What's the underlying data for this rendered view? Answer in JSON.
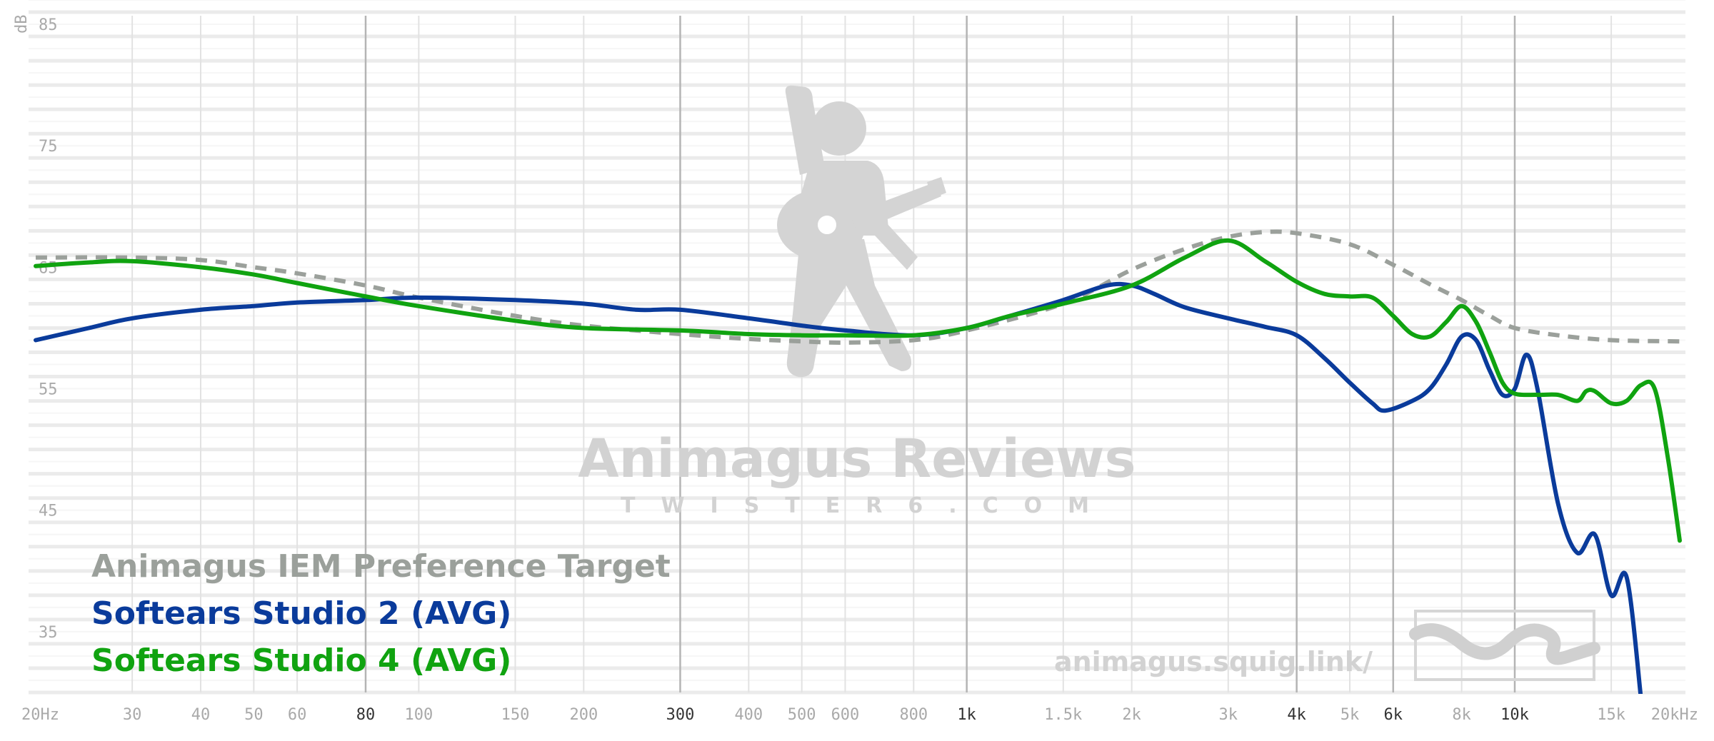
{
  "chart_data": {
    "type": "line",
    "xscale": "log",
    "xlim": [
      20,
      20000
    ],
    "ylim": [
      30,
      87
    ],
    "ylabel": "dB",
    "grid": true,
    "y_ticks": [
      {
        "label": "85",
        "value": 85
      },
      {
        "label": "75",
        "value": 75
      },
      {
        "label": "65",
        "value": 65
      },
      {
        "label": "55",
        "value": 55
      },
      {
        "label": "45",
        "value": 45
      },
      {
        "label": "35",
        "value": 35
      }
    ],
    "x_ticks": [
      {
        "label": "20Hz",
        "value": 20,
        "major": false
      },
      {
        "label": "30",
        "value": 30,
        "major": false
      },
      {
        "label": "40",
        "value": 40,
        "major": false
      },
      {
        "label": "50",
        "value": 50,
        "major": false
      },
      {
        "label": "60",
        "value": 60,
        "major": false
      },
      {
        "label": "80",
        "value": 80,
        "major": true
      },
      {
        "label": "100",
        "value": 100,
        "major": false
      },
      {
        "label": "150",
        "value": 150,
        "major": false
      },
      {
        "label": "200",
        "value": 200,
        "major": false
      },
      {
        "label": "300",
        "value": 300,
        "major": true
      },
      {
        "label": "400",
        "value": 400,
        "major": false
      },
      {
        "label": "500",
        "value": 500,
        "major": false
      },
      {
        "label": "600",
        "value": 600,
        "major": false
      },
      {
        "label": "800",
        "value": 800,
        "major": false
      },
      {
        "label": "1k",
        "value": 1000,
        "major": true
      },
      {
        "label": "1.5k",
        "value": 1500,
        "major": false
      },
      {
        "label": "2k",
        "value": 2000,
        "major": false
      },
      {
        "label": "3k",
        "value": 3000,
        "major": false
      },
      {
        "label": "4k",
        "value": 4000,
        "major": true
      },
      {
        "label": "5k",
        "value": 5000,
        "major": false
      },
      {
        "label": "6k",
        "value": 6000,
        "major": true
      },
      {
        "label": "8k",
        "value": 8000,
        "major": false
      },
      {
        "label": "10k",
        "value": 10000,
        "major": true
      },
      {
        "label": "15k",
        "value": 15000,
        "major": false
      },
      {
        "label": "20kHz",
        "value": 20000,
        "major": false
      }
    ],
    "series": [
      {
        "name": "Animagus IEM Preference Target",
        "color": "#9ba09b",
        "dashed": true,
        "points": [
          [
            20,
            65.8
          ],
          [
            30,
            65.8
          ],
          [
            40,
            65.6
          ],
          [
            50,
            65.0
          ],
          [
            60,
            64.5
          ],
          [
            80,
            63.5
          ],
          [
            100,
            62.5
          ],
          [
            150,
            61.0
          ],
          [
            200,
            60.2
          ],
          [
            300,
            59.5
          ],
          [
            400,
            59.1
          ],
          [
            500,
            58.9
          ],
          [
            600,
            58.8
          ],
          [
            800,
            59.0
          ],
          [
            1000,
            59.8
          ],
          [
            1500,
            62.0
          ],
          [
            2000,
            64.8
          ],
          [
            2500,
            66.5
          ],
          [
            3000,
            67.5
          ],
          [
            3500,
            67.9
          ],
          [
            4000,
            67.8
          ],
          [
            5000,
            66.9
          ],
          [
            6000,
            65.2
          ],
          [
            7000,
            63.6
          ],
          [
            8000,
            62.3
          ],
          [
            9000,
            61.0
          ],
          [
            10000,
            60.0
          ],
          [
            12000,
            59.4
          ],
          [
            15000,
            59.0
          ],
          [
            20000,
            58.9
          ]
        ]
      },
      {
        "name": "Softears Studio 2 (AVG)",
        "color": "#0a3b9b",
        "dashed": false,
        "points": [
          [
            20,
            59.0
          ],
          [
            25,
            60.0
          ],
          [
            30,
            60.8
          ],
          [
            40,
            61.5
          ],
          [
            50,
            61.8
          ],
          [
            60,
            62.1
          ],
          [
            80,
            62.3
          ],
          [
            100,
            62.5
          ],
          [
            150,
            62.3
          ],
          [
            200,
            62.0
          ],
          [
            250,
            61.5
          ],
          [
            300,
            61.5
          ],
          [
            400,
            60.8
          ],
          [
            500,
            60.2
          ],
          [
            600,
            59.8
          ],
          [
            800,
            59.4
          ],
          [
            1000,
            60.0
          ],
          [
            1200,
            61.0
          ],
          [
            1500,
            62.3
          ],
          [
            1800,
            63.5
          ],
          [
            2000,
            63.5
          ],
          [
            2200,
            62.8
          ],
          [
            2500,
            61.7
          ],
          [
            3000,
            60.8
          ],
          [
            3500,
            60.1
          ],
          [
            4000,
            59.4
          ],
          [
            4500,
            57.5
          ],
          [
            5000,
            55.5
          ],
          [
            5500,
            53.8
          ],
          [
            5800,
            53.2
          ],
          [
            6500,
            54.0
          ],
          [
            7000,
            55.0
          ],
          [
            7500,
            57.0
          ],
          [
            8000,
            59.3
          ],
          [
            8500,
            59.0
          ],
          [
            9000,
            56.5
          ],
          [
            9500,
            54.5
          ],
          [
            10000,
            55.0
          ],
          [
            10500,
            57.8
          ],
          [
            11000,
            55.0
          ],
          [
            12000,
            45.5
          ],
          [
            13000,
            41.5
          ],
          [
            14000,
            43.0
          ],
          [
            15000,
            38.0
          ],
          [
            16000,
            39.5
          ],
          [
            17000,
            29.5
          ]
        ]
      },
      {
        "name": "Softears Studio 4 (AVG)",
        "color": "#10a310",
        "dashed": false,
        "points": [
          [
            20,
            65.1
          ],
          [
            25,
            65.4
          ],
          [
            30,
            65.5
          ],
          [
            40,
            65.0
          ],
          [
            50,
            64.4
          ],
          [
            60,
            63.7
          ],
          [
            80,
            62.6
          ],
          [
            100,
            61.8
          ],
          [
            150,
            60.6
          ],
          [
            200,
            60.0
          ],
          [
            300,
            59.8
          ],
          [
            400,
            59.5
          ],
          [
            500,
            59.4
          ],
          [
            600,
            59.4
          ],
          [
            800,
            59.4
          ],
          [
            1000,
            60.0
          ],
          [
            1200,
            61.0
          ],
          [
            1500,
            62.0
          ],
          [
            2000,
            63.5
          ],
          [
            2500,
            65.8
          ],
          [
            3000,
            67.2
          ],
          [
            3500,
            65.5
          ],
          [
            4000,
            63.8
          ],
          [
            4500,
            62.8
          ],
          [
            5000,
            62.6
          ],
          [
            5500,
            62.5
          ],
          [
            6000,
            61.0
          ],
          [
            6500,
            59.5
          ],
          [
            7000,
            59.3
          ],
          [
            7500,
            60.5
          ],
          [
            8000,
            61.8
          ],
          [
            8500,
            60.5
          ],
          [
            9000,
            58.0
          ],
          [
            9500,
            55.5
          ],
          [
            10000,
            54.6
          ],
          [
            11000,
            54.5
          ],
          [
            12000,
            54.5
          ],
          [
            13000,
            54.0
          ],
          [
            13500,
            54.8
          ],
          [
            14000,
            54.8
          ],
          [
            15000,
            53.8
          ],
          [
            16000,
            54.0
          ],
          [
            17000,
            55.3
          ],
          [
            18000,
            55.0
          ],
          [
            19000,
            49.5
          ],
          [
            20000,
            42.5
          ]
        ]
      }
    ],
    "legend_position": "bottom-left"
  },
  "watermark": {
    "title": "Animagus Reviews",
    "subtitle": "TWISTER6.COM",
    "url": "animagus.squig.link/"
  }
}
